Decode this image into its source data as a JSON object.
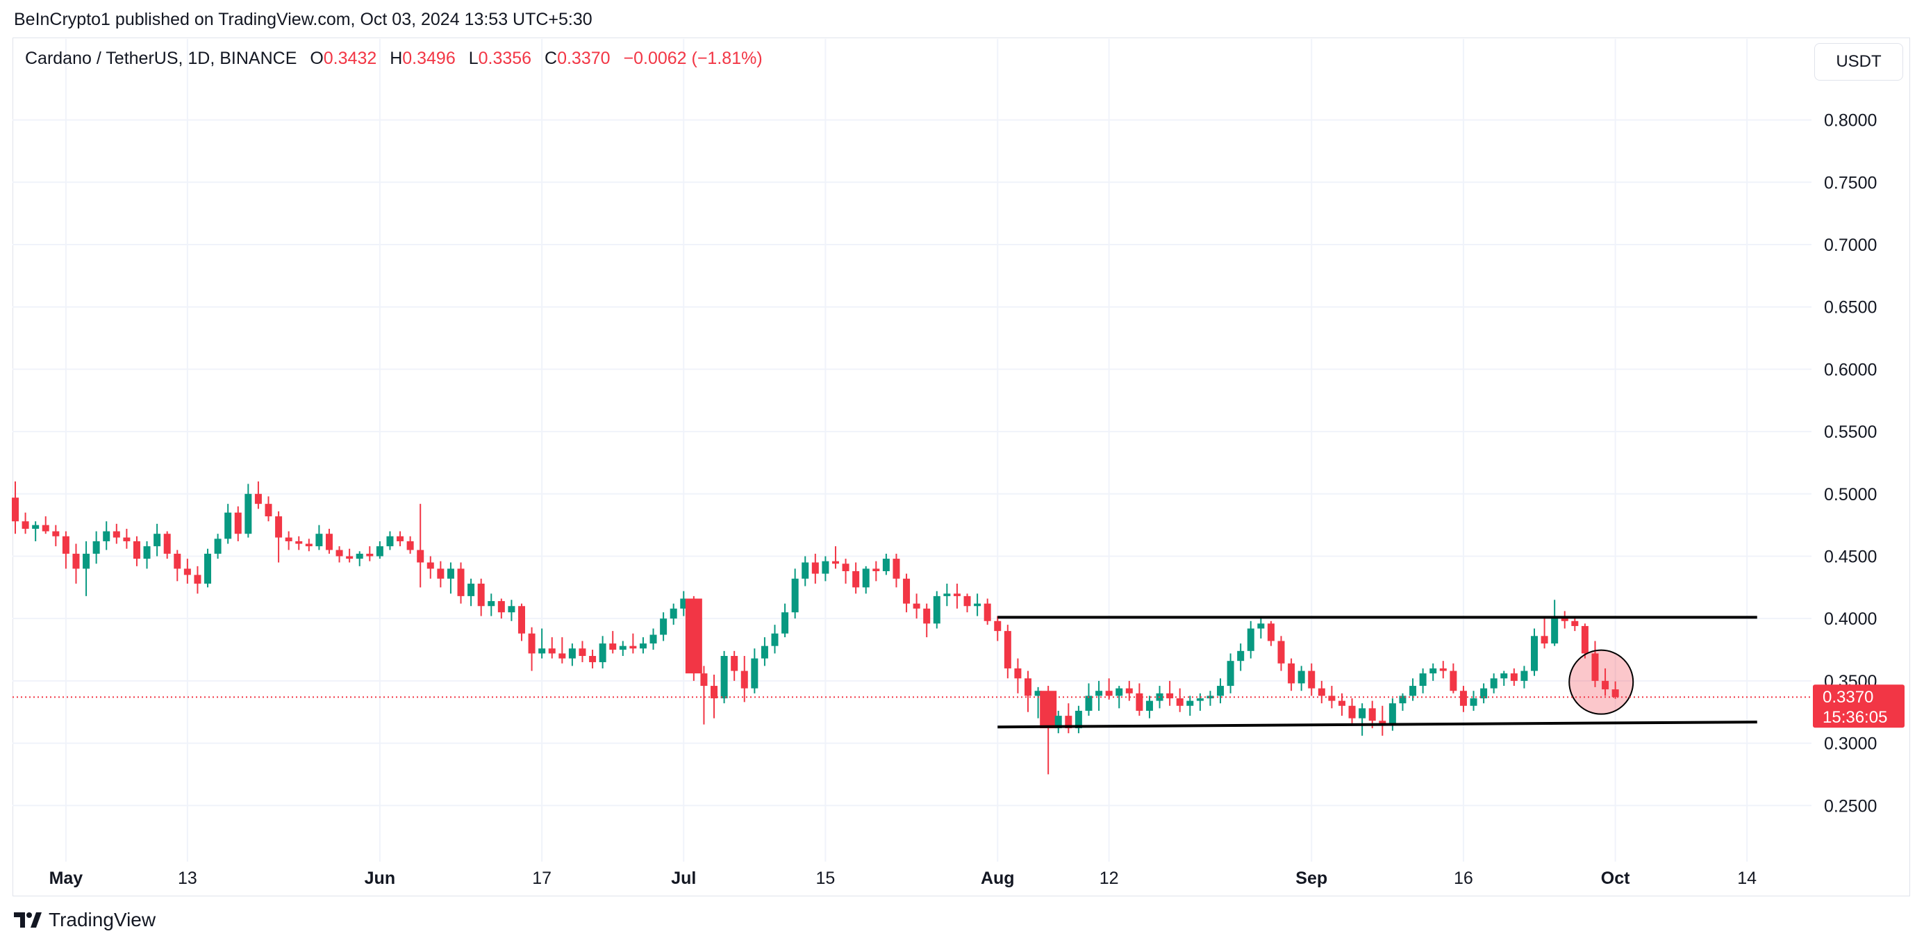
{
  "header": {
    "published": "BeInCrypto1 published on TradingView.com, Oct 03, 2024 13:53 UTC+5:30"
  },
  "legend": {
    "symbol": "Cardano / TetherUS, 1D, BINANCE",
    "o_label": "O",
    "o": "0.3432",
    "h_label": "H",
    "h": "0.3496",
    "l_label": "L",
    "l": "0.3356",
    "c_label": "C",
    "c": "0.3370",
    "change": "−0.0062 (−1.81%)"
  },
  "currency_button": "USDT",
  "footer": {
    "brand": "TradingView",
    "logo_icon": "tradingview-logo-icon"
  },
  "colors": {
    "up": "#089981",
    "down": "#f23645",
    "grid": "#f0f3fa",
    "text": "#131722",
    "price_line": "#f23645"
  },
  "last_price": {
    "price": "0.3370",
    "countdown": "15:36:05"
  },
  "chart_data": {
    "type": "candlestick",
    "title": "Cardano / TetherUS, 1D, BINANCE",
    "y_ticks": [
      "0.2500",
      "0.3000",
      "0.3500",
      "0.4000",
      "0.4500",
      "0.5000",
      "0.5500",
      "0.6000",
      "0.6500",
      "0.7000",
      "0.7500",
      "0.8000"
    ],
    "y_tick_values": [
      0.25,
      0.3,
      0.35,
      0.4,
      0.45,
      0.5,
      0.55,
      0.6,
      0.65,
      0.7,
      0.75,
      0.8
    ],
    "ylim": [
      0.205,
      0.865
    ],
    "x_ticks": [
      {
        "label": "May",
        "day": 5,
        "bold": true
      },
      {
        "label": "13",
        "day": 17,
        "bold": false
      },
      {
        "label": "Jun",
        "day": 36,
        "bold": true
      },
      {
        "label": "17",
        "day": 52,
        "bold": false
      },
      {
        "label": "Jul",
        "day": 66,
        "bold": true
      },
      {
        "label": "15",
        "day": 80,
        "bold": false
      },
      {
        "label": "Aug",
        "day": 97,
        "bold": true
      },
      {
        "label": "12",
        "day": 108,
        "bold": false
      },
      {
        "label": "Sep",
        "day": 128,
        "bold": true
      },
      {
        "label": "16",
        "day": 143,
        "bold": false
      },
      {
        "label": "Oct",
        "day": 158,
        "bold": true
      },
      {
        "label": "14",
        "day": 171,
        "bold": false
      }
    ],
    "x_start_label": "Apr 25, 2024",
    "grid": true,
    "candles": [
      [
        0.497,
        0.51,
        0.468,
        0.478
      ],
      [
        0.478,
        0.485,
        0.468,
        0.472
      ],
      [
        0.472,
        0.478,
        0.462,
        0.475
      ],
      [
        0.475,
        0.482,
        0.468,
        0.47
      ],
      [
        0.47,
        0.475,
        0.458,
        0.466
      ],
      [
        0.466,
        0.47,
        0.44,
        0.452
      ],
      [
        0.452,
        0.46,
        0.428,
        0.44
      ],
      [
        0.44,
        0.462,
        0.418,
        0.452
      ],
      [
        0.452,
        0.47,
        0.444,
        0.462
      ],
      [
        0.462,
        0.478,
        0.455,
        0.47
      ],
      [
        0.47,
        0.476,
        0.46,
        0.465
      ],
      [
        0.465,
        0.472,
        0.456,
        0.462
      ],
      [
        0.462,
        0.466,
        0.442,
        0.448
      ],
      [
        0.448,
        0.462,
        0.44,
        0.458
      ],
      [
        0.458,
        0.476,
        0.45,
        0.468
      ],
      [
        0.468,
        0.47,
        0.448,
        0.452
      ],
      [
        0.452,
        0.455,
        0.43,
        0.44
      ],
      [
        0.44,
        0.448,
        0.428,
        0.435
      ],
      [
        0.435,
        0.442,
        0.42,
        0.428
      ],
      [
        0.428,
        0.456,
        0.425,
        0.452
      ],
      [
        0.452,
        0.468,
        0.448,
        0.464
      ],
      [
        0.464,
        0.492,
        0.46,
        0.485
      ],
      [
        0.485,
        0.49,
        0.462,
        0.468
      ],
      [
        0.468,
        0.508,
        0.465,
        0.5
      ],
      [
        0.5,
        0.51,
        0.488,
        0.492
      ],
      [
        0.492,
        0.498,
        0.478,
        0.482
      ],
      [
        0.482,
        0.486,
        0.445,
        0.465
      ],
      [
        0.465,
        0.47,
        0.455,
        0.462
      ],
      [
        0.462,
        0.466,
        0.455,
        0.46
      ],
      [
        0.46,
        0.464,
        0.454,
        0.458
      ],
      [
        0.458,
        0.475,
        0.455,
        0.468
      ],
      [
        0.468,
        0.472,
        0.452,
        0.455
      ],
      [
        0.455,
        0.458,
        0.445,
        0.45
      ],
      [
        0.45,
        0.456,
        0.445,
        0.448
      ],
      [
        0.448,
        0.454,
        0.442,
        0.452
      ],
      [
        0.452,
        0.458,
        0.446,
        0.45
      ],
      [
        0.45,
        0.462,
        0.448,
        0.458
      ],
      [
        0.458,
        0.47,
        0.455,
        0.466
      ],
      [
        0.466,
        0.47,
        0.458,
        0.462
      ],
      [
        0.462,
        0.466,
        0.452,
        0.455
      ],
      [
        0.455,
        0.492,
        0.425,
        0.445
      ],
      [
        0.445,
        0.45,
        0.432,
        0.44
      ],
      [
        0.44,
        0.446,
        0.425,
        0.432
      ],
      [
        0.432,
        0.445,
        0.42,
        0.44
      ],
      [
        0.44,
        0.445,
        0.412,
        0.418
      ],
      [
        0.418,
        0.432,
        0.41,
        0.428
      ],
      [
        0.428,
        0.432,
        0.402,
        0.41
      ],
      [
        0.41,
        0.42,
        0.402,
        0.414
      ],
      [
        0.414,
        0.416,
        0.4,
        0.405
      ],
      [
        0.405,
        0.415,
        0.398,
        0.41
      ],
      [
        0.41,
        0.412,
        0.382,
        0.388
      ],
      [
        0.388,
        0.393,
        0.358,
        0.372
      ],
      [
        0.372,
        0.392,
        0.368,
        0.376
      ],
      [
        0.376,
        0.385,
        0.368,
        0.372
      ],
      [
        0.372,
        0.385,
        0.364,
        0.368
      ],
      [
        0.368,
        0.38,
        0.362,
        0.376
      ],
      [
        0.376,
        0.382,
        0.365,
        0.37
      ],
      [
        0.37,
        0.375,
        0.36,
        0.365
      ],
      [
        0.365,
        0.386,
        0.36,
        0.38
      ],
      [
        0.38,
        0.39,
        0.372,
        0.375
      ],
      [
        0.375,
        0.382,
        0.37,
        0.378
      ],
      [
        0.378,
        0.388,
        0.372,
        0.376
      ],
      [
        0.376,
        0.385,
        0.372,
        0.38
      ],
      [
        0.38,
        0.392,
        0.375,
        0.387
      ],
      [
        0.387,
        0.405,
        0.382,
        0.4
      ],
      [
        0.4,
        0.412,
        0.395,
        0.408
      ],
      [
        0.408,
        0.422,
        0.402,
        0.416
      ],
      [
        0.416,
        0.418,
        0.35,
        0.356
      ],
      [
        0.356,
        0.362,
        0.315,
        0.346
      ],
      [
        0.346,
        0.355,
        0.32,
        0.336
      ],
      [
        0.336,
        0.374,
        0.332,
        0.37
      ],
      [
        0.37,
        0.374,
        0.35,
        0.358
      ],
      [
        0.358,
        0.37,
        0.333,
        0.344
      ],
      [
        0.344,
        0.376,
        0.34,
        0.368
      ],
      [
        0.368,
        0.385,
        0.362,
        0.378
      ],
      [
        0.378,
        0.395,
        0.372,
        0.388
      ],
      [
        0.388,
        0.412,
        0.385,
        0.405
      ],
      [
        0.405,
        0.44,
        0.4,
        0.432
      ],
      [
        0.432,
        0.45,
        0.426,
        0.445
      ],
      [
        0.445,
        0.452,
        0.428,
        0.436
      ],
      [
        0.436,
        0.45,
        0.43,
        0.446
      ],
      [
        0.446,
        0.458,
        0.44,
        0.444
      ],
      [
        0.444,
        0.448,
        0.428,
        0.438
      ],
      [
        0.438,
        0.445,
        0.42,
        0.425
      ],
      [
        0.425,
        0.442,
        0.42,
        0.44
      ],
      [
        0.44,
        0.446,
        0.43,
        0.438
      ],
      [
        0.438,
        0.452,
        0.435,
        0.448
      ],
      [
        0.448,
        0.452,
        0.425,
        0.432
      ],
      [
        0.432,
        0.436,
        0.405,
        0.412
      ],
      [
        0.412,
        0.42,
        0.4,
        0.408
      ],
      [
        0.408,
        0.412,
        0.385,
        0.396
      ],
      [
        0.396,
        0.422,
        0.392,
        0.418
      ],
      [
        0.418,
        0.428,
        0.41,
        0.42
      ],
      [
        0.42,
        0.428,
        0.408,
        0.418
      ],
      [
        0.418,
        0.42,
        0.405,
        0.41
      ],
      [
        0.41,
        0.42,
        0.402,
        0.412
      ],
      [
        0.412,
        0.416,
        0.395,
        0.398
      ],
      [
        0.398,
        0.402,
        0.382,
        0.39
      ],
      [
        0.39,
        0.395,
        0.352,
        0.36
      ],
      [
        0.36,
        0.368,
        0.34,
        0.352
      ],
      [
        0.352,
        0.358,
        0.325,
        0.338
      ],
      [
        0.338,
        0.345,
        0.32,
        0.342
      ],
      [
        0.342,
        0.346,
        0.275,
        0.312
      ],
      [
        0.312,
        0.326,
        0.308,
        0.322
      ],
      [
        0.322,
        0.332,
        0.308,
        0.312
      ],
      [
        0.312,
        0.33,
        0.308,
        0.326
      ],
      [
        0.326,
        0.348,
        0.322,
        0.338
      ],
      [
        0.338,
        0.35,
        0.326,
        0.342
      ],
      [
        0.342,
        0.352,
        0.335,
        0.338
      ],
      [
        0.338,
        0.346,
        0.328,
        0.344
      ],
      [
        0.344,
        0.35,
        0.334,
        0.34
      ],
      [
        0.34,
        0.348,
        0.322,
        0.326
      ],
      [
        0.326,
        0.338,
        0.32,
        0.334
      ],
      [
        0.334,
        0.346,
        0.328,
        0.34
      ],
      [
        0.34,
        0.35,
        0.33,
        0.336
      ],
      [
        0.336,
        0.344,
        0.325,
        0.33
      ],
      [
        0.33,
        0.338,
        0.322,
        0.334
      ],
      [
        0.334,
        0.34,
        0.326,
        0.336
      ],
      [
        0.336,
        0.342,
        0.33,
        0.338
      ],
      [
        0.338,
        0.352,
        0.332,
        0.346
      ],
      [
        0.346,
        0.372,
        0.34,
        0.366
      ],
      [
        0.366,
        0.38,
        0.358,
        0.374
      ],
      [
        0.374,
        0.398,
        0.368,
        0.392
      ],
      [
        0.392,
        0.402,
        0.384,
        0.396
      ],
      [
        0.396,
        0.398,
        0.378,
        0.382
      ],
      [
        0.382,
        0.386,
        0.358,
        0.364
      ],
      [
        0.364,
        0.368,
        0.342,
        0.348
      ],
      [
        0.348,
        0.362,
        0.342,
        0.358
      ],
      [
        0.358,
        0.364,
        0.338,
        0.344
      ],
      [
        0.344,
        0.35,
        0.332,
        0.338
      ],
      [
        0.338,
        0.346,
        0.328,
        0.334
      ],
      [
        0.334,
        0.34,
        0.322,
        0.33
      ],
      [
        0.33,
        0.336,
        0.316,
        0.32
      ],
      [
        0.32,
        0.332,
        0.306,
        0.328
      ],
      [
        0.328,
        0.334,
        0.312,
        0.318
      ],
      [
        0.318,
        0.33,
        0.306,
        0.314
      ],
      [
        0.314,
        0.336,
        0.31,
        0.332
      ],
      [
        0.332,
        0.34,
        0.326,
        0.338
      ],
      [
        0.338,
        0.352,
        0.334,
        0.346
      ],
      [
        0.346,
        0.36,
        0.34,
        0.356
      ],
      [
        0.356,
        0.364,
        0.35,
        0.36
      ],
      [
        0.36,
        0.366,
        0.352,
        0.358
      ],
      [
        0.358,
        0.364,
        0.34,
        0.342
      ],
      [
        0.342,
        0.346,
        0.325,
        0.33
      ],
      [
        0.33,
        0.342,
        0.326,
        0.336
      ],
      [
        0.336,
        0.348,
        0.332,
        0.344
      ],
      [
        0.344,
        0.356,
        0.34,
        0.352
      ],
      [
        0.352,
        0.358,
        0.346,
        0.356
      ],
      [
        0.356,
        0.36,
        0.346,
        0.35
      ],
      [
        0.35,
        0.362,
        0.344,
        0.358
      ],
      [
        0.358,
        0.392,
        0.354,
        0.386
      ],
      [
        0.386,
        0.4,
        0.376,
        0.38
      ],
      [
        0.38,
        0.415,
        0.378,
        0.402
      ],
      [
        0.402,
        0.406,
        0.392,
        0.398
      ],
      [
        0.398,
        0.402,
        0.39,
        0.394
      ],
      [
        0.394,
        0.396,
        0.368,
        0.372
      ],
      [
        0.372,
        0.382,
        0.345,
        0.35
      ],
      [
        0.35,
        0.36,
        0.338,
        0.3432
      ],
      [
        0.3432,
        0.3496,
        0.3356,
        0.337
      ]
    ],
    "annotations": {
      "channel_upper": [
        [
          97,
          0.401
        ],
        [
          172,
          0.401
        ]
      ],
      "channel_lower": [
        [
          97,
          0.313
        ],
        [
          172,
          0.317
        ]
      ],
      "circle_center": [
        156.6,
        0.349
      ],
      "current_price_line": 0.337
    }
  }
}
